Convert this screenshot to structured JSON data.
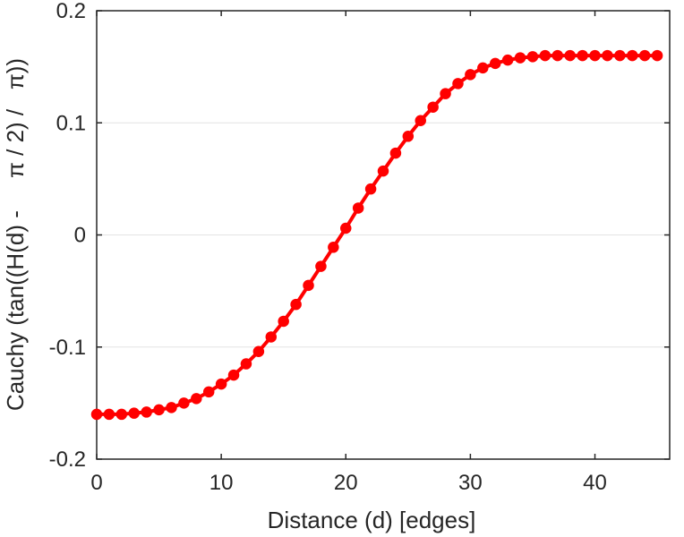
{
  "chart_data": {
    "type": "line",
    "xlabel": "Distance (d) [edges]",
    "ylabel": "Cauchy (tan((H(d) -     π / 2) /   π))",
    "xlim": [
      0,
      46
    ],
    "ylim": [
      -0.2,
      0.2
    ],
    "xticks": [
      0,
      10,
      20,
      30,
      40
    ],
    "xtick_labels": [
      "0",
      "10",
      "20",
      "30",
      "40"
    ],
    "yticks": [
      -0.2,
      -0.1,
      0,
      0.1,
      0.2
    ],
    "ytick_labels": [
      "-0.2",
      "-0.1",
      "0",
      "0.1",
      "0.2"
    ],
    "grid": "horizontal",
    "series": [
      {
        "color": "#ff0000",
        "marker": "circle",
        "x": [
          0,
          1,
          2,
          3,
          4,
          5,
          6,
          7,
          8,
          9,
          10,
          11,
          12,
          13,
          14,
          15,
          16,
          17,
          18,
          19,
          20,
          21,
          22,
          23,
          24,
          25,
          26,
          27,
          28,
          29,
          30,
          31,
          32,
          33,
          34,
          35,
          36,
          37,
          38,
          39,
          40,
          41,
          42,
          43,
          44,
          45
        ],
        "y": [
          -0.16,
          -0.16,
          -0.16,
          -0.159,
          -0.158,
          -0.156,
          -0.154,
          -0.15,
          -0.146,
          -0.14,
          -0.133,
          -0.125,
          -0.115,
          -0.104,
          -0.091,
          -0.077,
          -0.062,
          -0.045,
          -0.028,
          -0.011,
          0.006,
          0.024,
          0.041,
          0.057,
          0.073,
          0.088,
          0.102,
          0.114,
          0.126,
          0.135,
          0.143,
          0.149,
          0.153,
          0.156,
          0.158,
          0.159,
          0.16,
          0.16,
          0.16,
          0.16,
          0.16,
          0.16,
          0.16,
          0.16,
          0.16,
          0.16
        ]
      }
    ]
  }
}
